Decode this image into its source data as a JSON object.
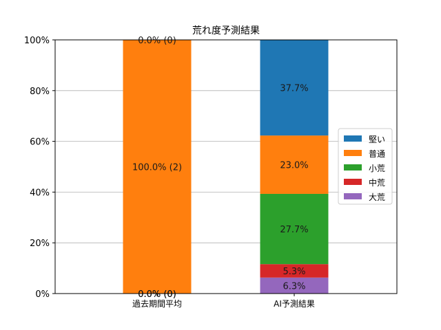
{
  "chart_data": {
    "type": "bar",
    "stacked": true,
    "title": "荒れ度予測結果",
    "xlabel": "",
    "ylabel": "",
    "ylim": [
      0,
      100
    ],
    "yticks": [
      "0%",
      "20%",
      "40%",
      "60%",
      "80%",
      "100%"
    ],
    "yticks_values": [
      0,
      20,
      40,
      60,
      80,
      100
    ],
    "grid": "horizontal",
    "legend_position": "right",
    "categories": [
      "過去期間平均",
      "AI予測結果"
    ],
    "series": [
      {
        "name": "大荒",
        "color": "#9467bd",
        "values": [
          0.0,
          6.3
        ],
        "labels": [
          "0.0% (0)",
          "6.3%"
        ]
      },
      {
        "name": "中荒",
        "color": "#d62728",
        "values": [
          0.0,
          5.3
        ],
        "labels": [
          "0.0% (0)",
          "5.3%"
        ]
      },
      {
        "name": "小荒",
        "color": "#2ca02c",
        "values": [
          0.0,
          27.7
        ],
        "labels": [
          "0.0% (0)",
          "27.7%"
        ]
      },
      {
        "name": "普通",
        "color": "#ff7f0e",
        "values": [
          100.0,
          23.0
        ],
        "labels": [
          "100.0% (2)",
          "23.0%"
        ]
      },
      {
        "name": "堅い",
        "color": "#1f77b4",
        "values": [
          0.0,
          37.7
        ],
        "labels": [
          "0.0% (0)",
          "37.7%"
        ]
      }
    ],
    "legend_order": [
      "堅い",
      "普通",
      "小荒",
      "中荒",
      "大荒"
    ]
  }
}
